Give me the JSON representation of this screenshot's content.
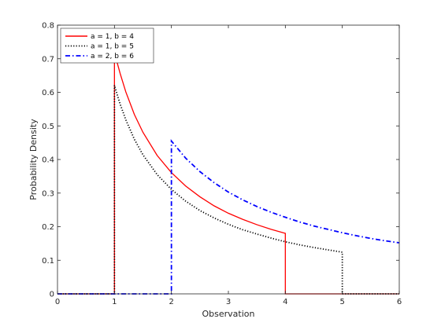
{
  "chart_data": {
    "type": "line",
    "xlabel": "Observation",
    "ylabel": "Probability Density",
    "xlim": [
      0,
      6
    ],
    "ylim": [
      0,
      0.8
    ],
    "xticks": [
      0,
      1,
      2,
      3,
      4,
      5,
      6
    ],
    "yticks": [
      0,
      0.1,
      0.2,
      0.3,
      0.4,
      0.5,
      0.6,
      0.7,
      0.8
    ],
    "ytick_labels": [
      "0",
      "0.1",
      "0.2",
      "0.3",
      "0.4",
      "0.5",
      "0.6",
      "0.7",
      "0.8"
    ],
    "grid": false,
    "legend_position": "top-left",
    "series": [
      {
        "name": "a = 1, b = 4",
        "color": "#ff0000",
        "line_style": "solid",
        "x": [
          0,
          1,
          1,
          1.05,
          1.1,
          1.2,
          1.35,
          1.5,
          1.75,
          2,
          2.25,
          2.5,
          2.75,
          3,
          3.25,
          3.5,
          3.75,
          4,
          4,
          6
        ],
        "y": [
          0,
          0,
          0.721,
          0.687,
          0.656,
          0.601,
          0.534,
          0.481,
          0.412,
          0.361,
          0.321,
          0.289,
          0.262,
          0.24,
          0.222,
          0.206,
          0.192,
          0.18,
          0,
          0
        ]
      },
      {
        "name": "a = 1, b = 5",
        "color": "#000000",
        "line_style": "dotted",
        "x": [
          0,
          1,
          1,
          1.05,
          1.1,
          1.2,
          1.35,
          1.5,
          1.75,
          2,
          2.25,
          2.5,
          2.75,
          3,
          3.25,
          3.5,
          3.75,
          4,
          4.25,
          4.5,
          4.75,
          5,
          5,
          6
        ],
        "y": [
          0,
          0,
          0.621,
          0.592,
          0.565,
          0.518,
          0.46,
          0.414,
          0.355,
          0.311,
          0.276,
          0.248,
          0.226,
          0.207,
          0.191,
          0.178,
          0.166,
          0.155,
          0.146,
          0.138,
          0.131,
          0.124,
          0,
          0
        ]
      },
      {
        "name": "a = 2, b = 6",
        "color": "#0000ff",
        "line_style": "dashdot",
        "x": [
          0,
          2,
          2,
          2.25,
          2.5,
          2.75,
          3,
          3.25,
          3.5,
          3.75,
          4,
          4.25,
          4.5,
          4.75,
          5,
          5.25,
          5.5,
          5.75,
          6
        ],
        "y": [
          0,
          0,
          0.455,
          0.404,
          0.364,
          0.331,
          0.303,
          0.28,
          0.26,
          0.243,
          0.228,
          0.214,
          0.202,
          0.192,
          0.182,
          0.173,
          0.165,
          0.158,
          0.152
        ]
      }
    ]
  }
}
